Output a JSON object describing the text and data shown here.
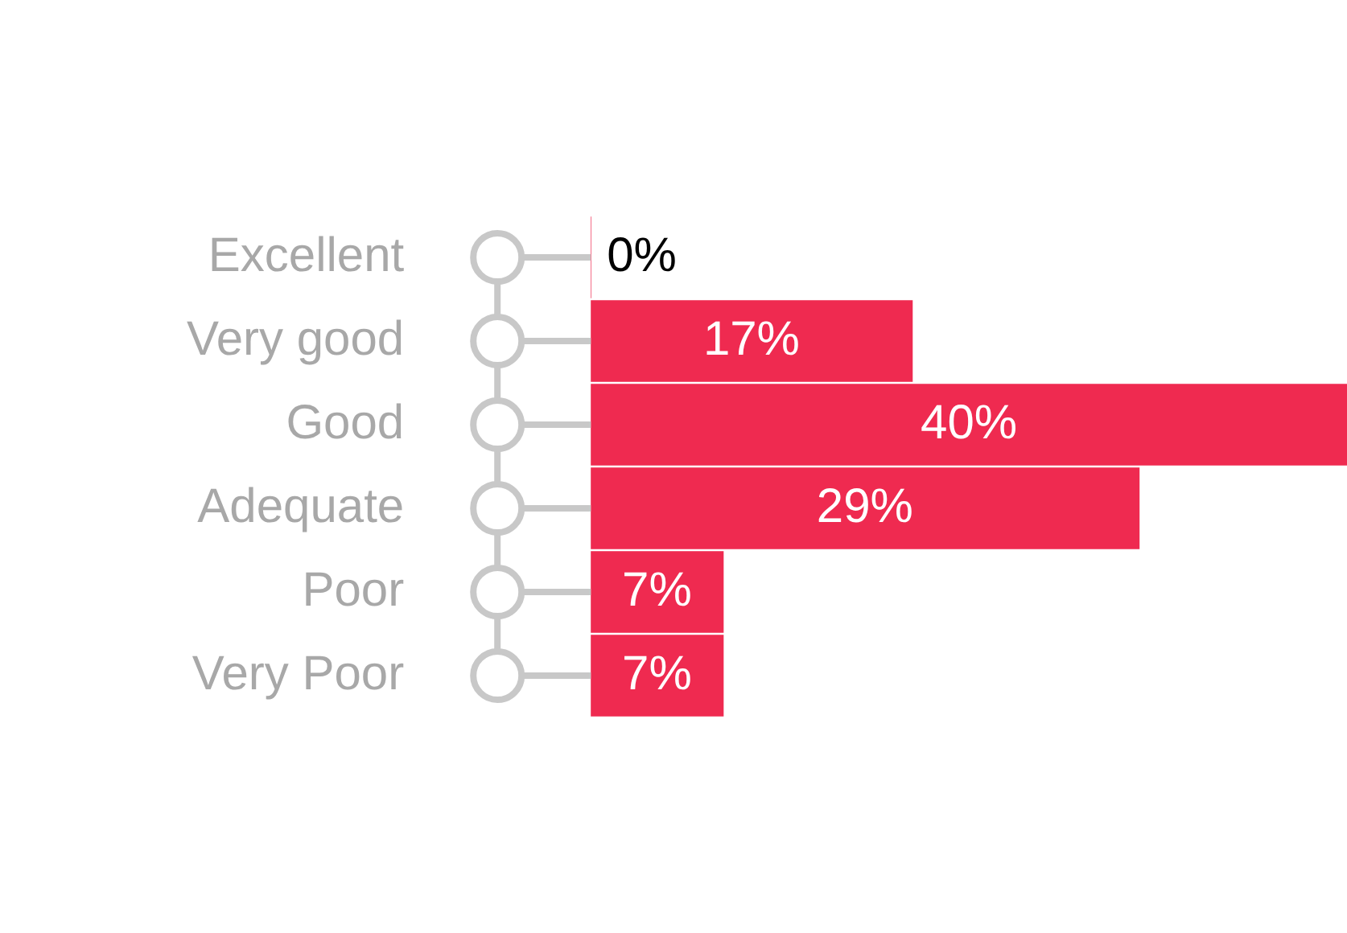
{
  "chart_data": {
    "type": "bar",
    "orientation": "horizontal",
    "categories": [
      "Excellent",
      "Very good",
      "Good",
      "Adequate",
      "Poor",
      "Very Poor"
    ],
    "values": [
      0,
      17,
      40,
      29,
      7,
      7
    ],
    "value_labels": [
      "0%",
      "17%",
      "40%",
      "29%",
      "7%",
      "7%"
    ],
    "color": "#ef2a50",
    "xlim": [
      0,
      40
    ],
    "tick_labels": "y",
    "grid": false,
    "legend": false
  }
}
